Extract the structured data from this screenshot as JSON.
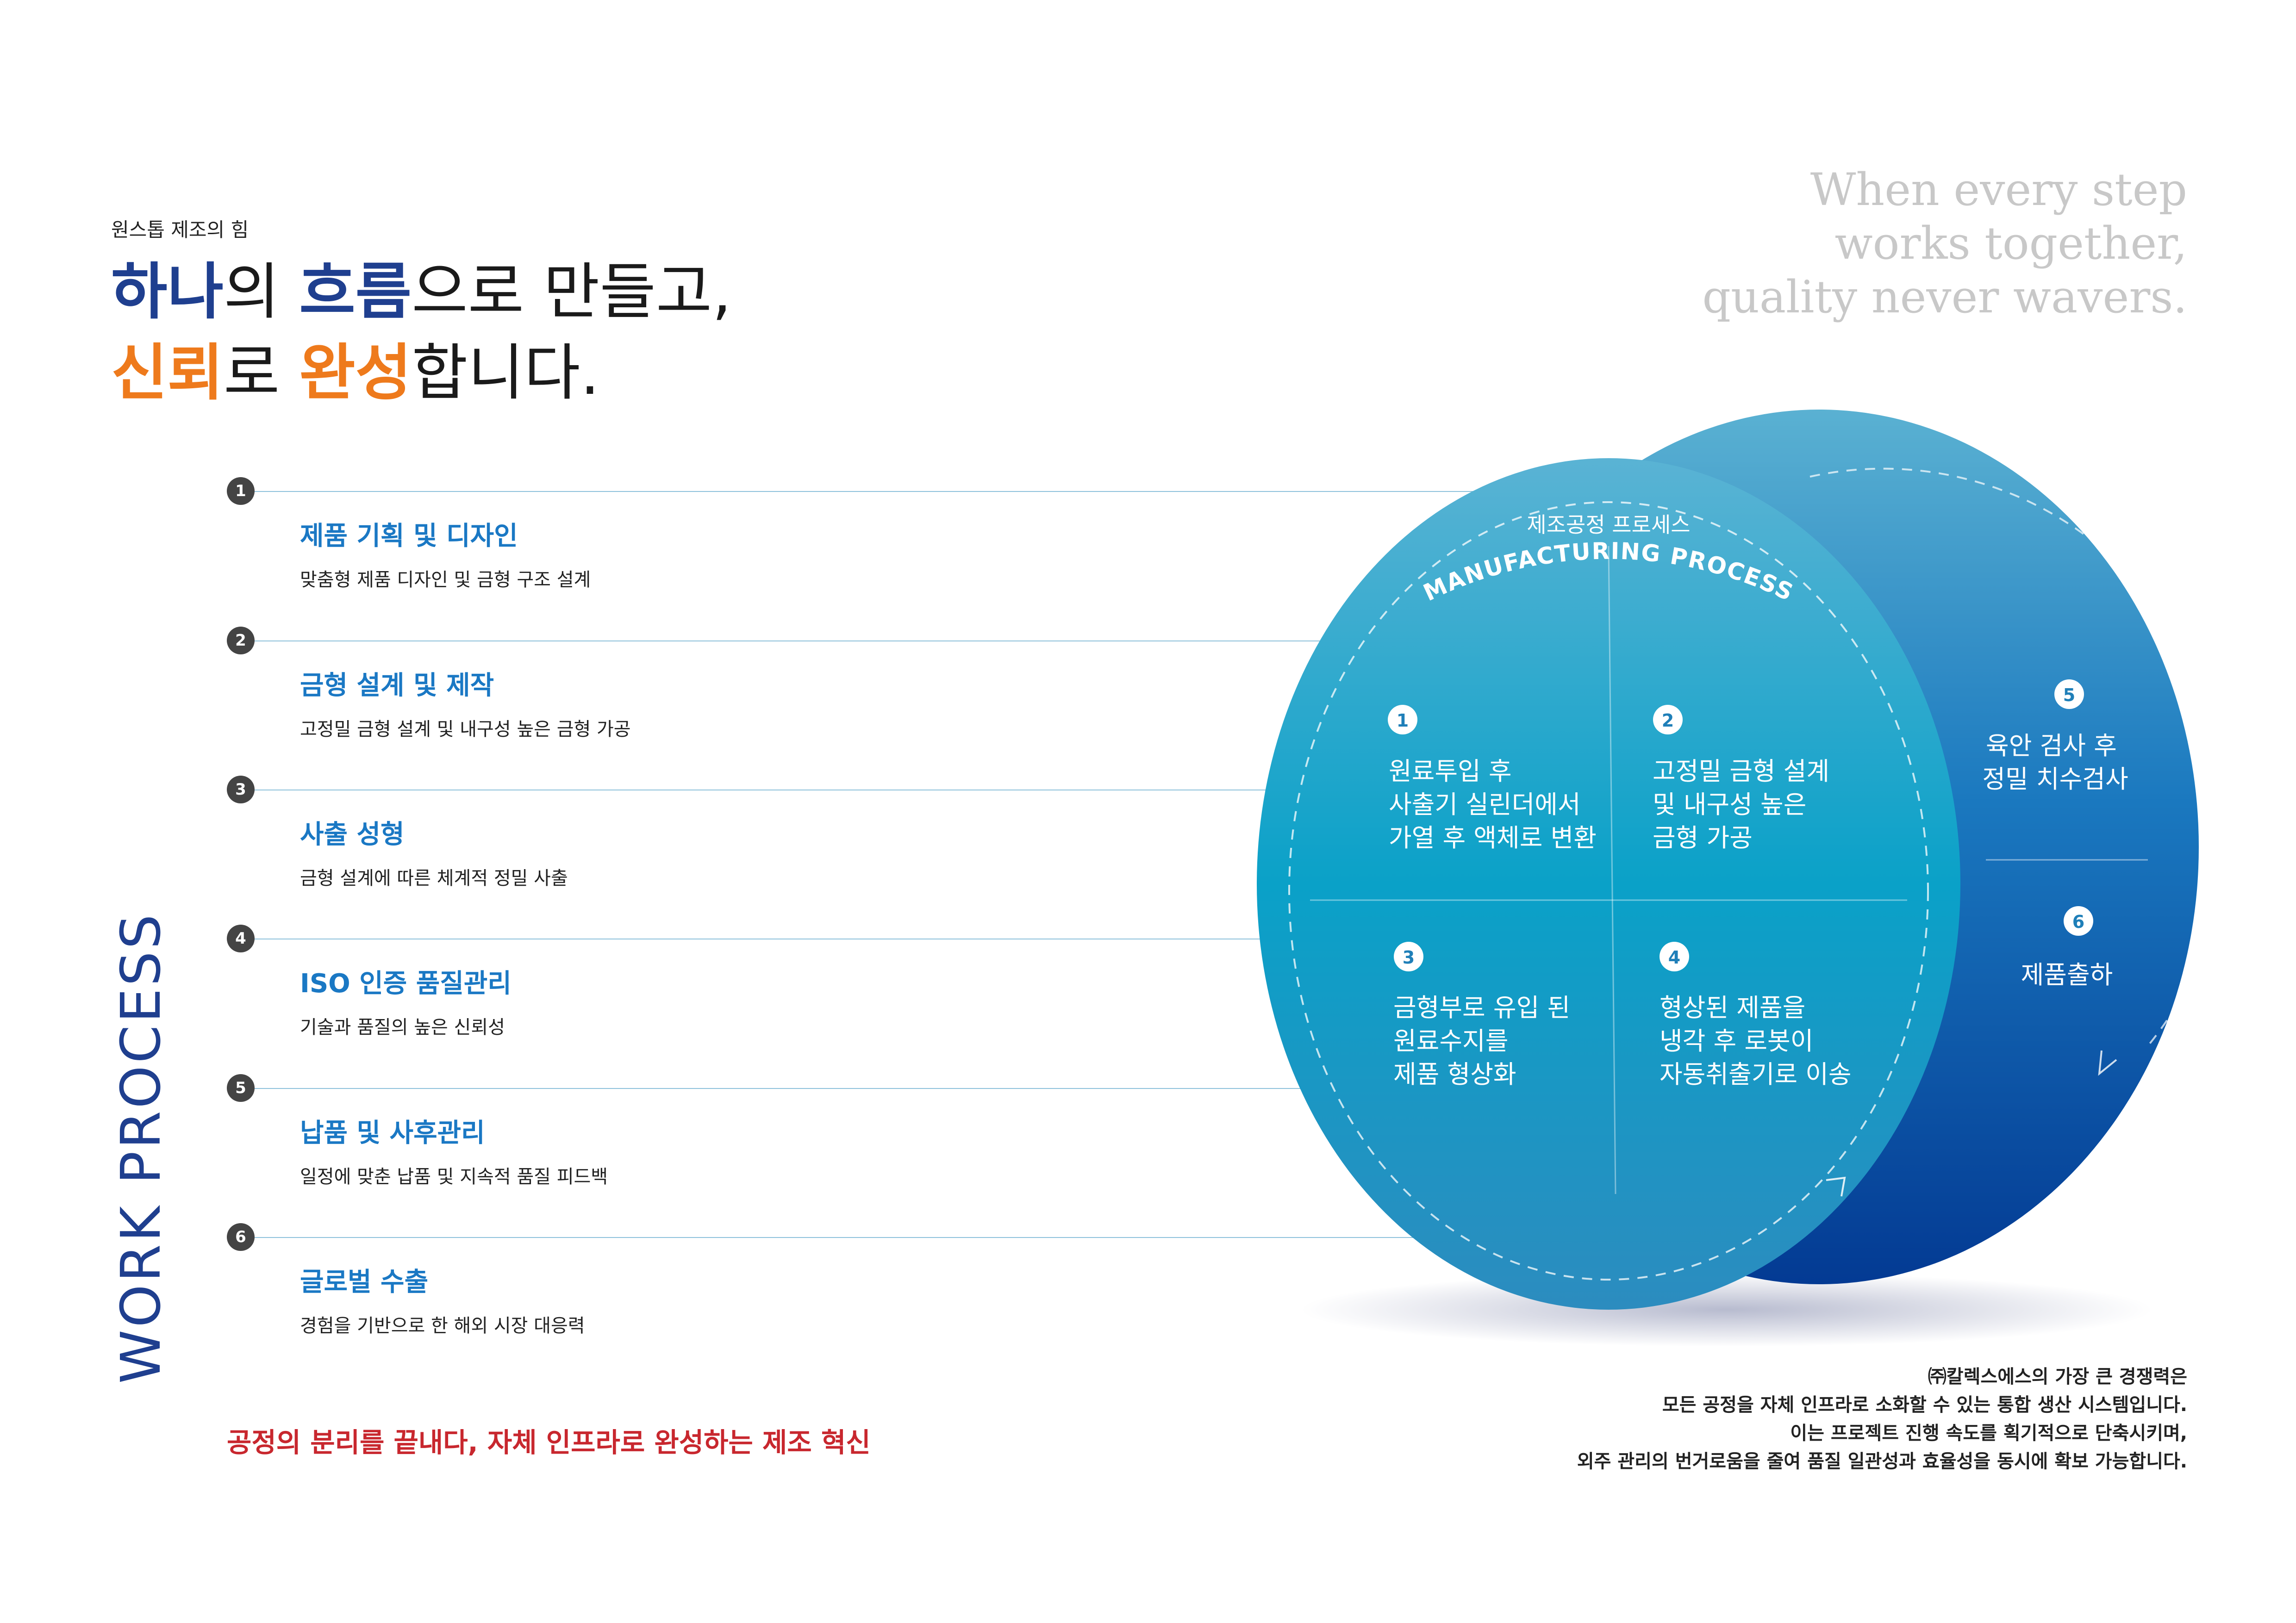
{
  "header": {
    "eyebrow": "원스톱 제조의 힘",
    "line1": {
      "a": "하나",
      "b": "의 ",
      "c": "흐름",
      "d": "으로 만들고,"
    },
    "line2": {
      "a": "신뢰",
      "b": "로 ",
      "c": "완성",
      "d": "합니다."
    }
  },
  "tagline": [
    "When every step",
    "works together,",
    "quality never wavers."
  ],
  "vertical_label": "WORK PROCESS",
  "steps": [
    {
      "num": "1",
      "title": "제품 기획 및 디자인",
      "desc": "맞춤형 제품 디자인 및 금형 구조 설계"
    },
    {
      "num": "2",
      "title": "금형 설계 및 제작",
      "desc": "고정밀 금형 설계 및 내구성 높은 금형 가공"
    },
    {
      "num": "3",
      "title": "사출 성형",
      "desc": "금형 설계에 따른 체계적 정밀 사출"
    },
    {
      "num": "4",
      "title": "ISO 인증 품질관리",
      "desc": "기술과 품질의 높은 신뢰성"
    },
    {
      "num": "5",
      "title": "납품 및 사후관리",
      "desc": "일정에 맞춘 납품 및 지속적 품질 피드백"
    },
    {
      "num": "6",
      "title": "글로벌 수출",
      "desc": "경험을 기반으로 한 해외 시장 대응력"
    }
  ],
  "slogan": "공정의 분리를 끝내다, 자체 인프라로 완성하는 제조 혁신",
  "diagram": {
    "title_ko": "제조공정 프로세스",
    "title_en": "MANUFACTURING PROCESS",
    "q1": {
      "num": "1",
      "lines": [
        "원료투입 후",
        "사출기 실린더에서",
        "가열 후 액체로 변환"
      ]
    },
    "q2": {
      "num": "2",
      "lines": [
        "고정밀 금형 설계",
        "및 내구성 높은",
        "금형 가공"
      ]
    },
    "q3": {
      "num": "3",
      "lines": [
        "금형부로 유입 된",
        "원료수지를",
        "제품 형상화"
      ]
    },
    "q4": {
      "num": "4",
      "lines": [
        "형상된 제품을",
        "냉각 후 로봇이",
        "자동취출기로 이송"
      ]
    },
    "q5": {
      "num": "5",
      "lines": [
        "육안 검사 후",
        "정밀 치수검사"
      ]
    },
    "q6": {
      "num": "6",
      "lines": [
        "제품출하"
      ]
    },
    "colors": {
      "front_top": "#5ab3d4",
      "front_mid": "#0aa1c8",
      "back_top": "#5ab1d2",
      "back_bottom": "#033a93"
    }
  },
  "summary": [
    "㈜칼렉스에스의 가장 큰 경쟁력은",
    "모든 공정을 자체 인프라로 소화할 수 있는 통합 생산 시스템입니다.",
    "이는 프로젝트 진행 속도를 획기적으로 단축시키며,",
    "외주 관리의 번거로움을 줄여 품질 일관성과 효율성을 동시에 확보 가능합니다."
  ]
}
